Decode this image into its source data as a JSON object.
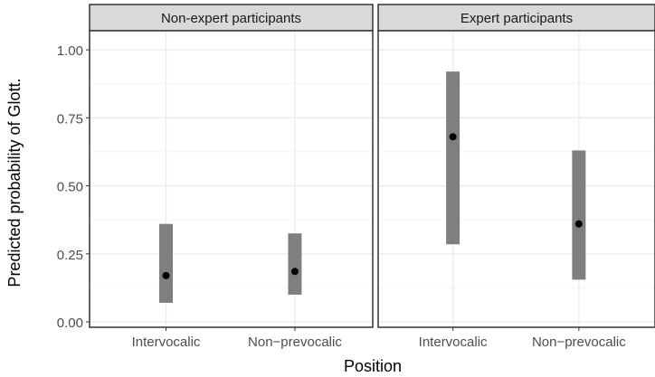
{
  "chart_data": {
    "type": "scatter",
    "subtype": "point-range",
    "title": "",
    "xlabel": "Position",
    "ylabel": "Predicted probability of Glott.",
    "ylim": [
      -0.02,
      1.07
    ],
    "yticks": [
      0.0,
      0.25,
      0.5,
      0.75,
      1.0
    ],
    "ytick_labels": [
      "0.00",
      "0.25",
      "0.50",
      "0.75",
      "1.00"
    ],
    "categories": [
      "Intervocalic",
      "Non−prevocalic"
    ],
    "grid": true,
    "legend": "none",
    "panels": [
      {
        "label": "Non-expert participants",
        "points": [
          {
            "x": "Intervocalic",
            "y": 0.17,
            "lower": 0.07,
            "upper": 0.36
          },
          {
            "x": "Non−prevocalic",
            "y": 0.185,
            "lower": 0.1,
            "upper": 0.325
          }
        ]
      },
      {
        "label": "Expert participants",
        "points": [
          {
            "x": "Intervocalic",
            "y": 0.68,
            "lower": 0.285,
            "upper": 0.92
          },
          {
            "x": "Non−prevocalic",
            "y": 0.36,
            "lower": 0.155,
            "upper": 0.63
          }
        ]
      }
    ],
    "colors": {
      "interval": "#7f7f7f",
      "point": "#000000",
      "strip_fill": "#d9d9d9",
      "grid": "#ebebeb",
      "border": "#333333"
    }
  }
}
